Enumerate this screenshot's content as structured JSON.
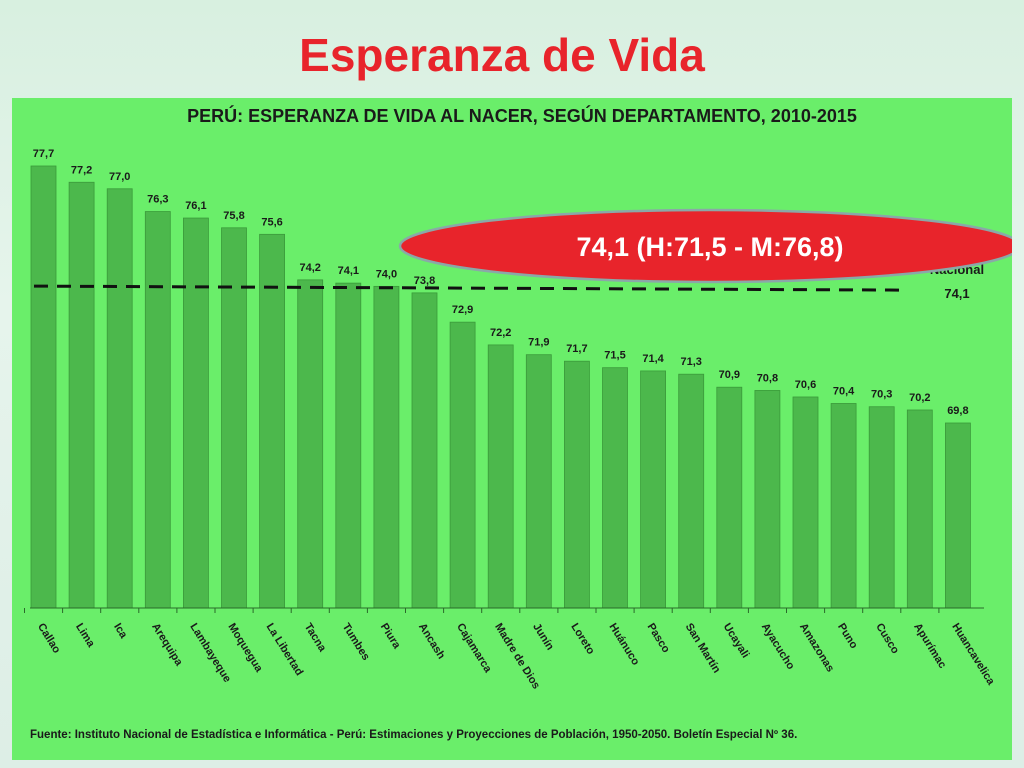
{
  "slide": {
    "title": "Esperanza de Vida"
  },
  "callout": {
    "text": "74,1 (H:71,5 - M:76,8)"
  },
  "national": {
    "label": "Nacional",
    "value": "74,1"
  },
  "source": "Fuente: Instituto Nacional de Estadística e Informática - Perú: Estimaciones y Proyecciones de Población, 1950-2050. Boletín Especial Nº 36.",
  "colors": {
    "bar": "#4cb84c",
    "bar_edge": "#3a9a3a",
    "panel": "#6aee6a",
    "title": "#e8242b",
    "callout": "#e8242b"
  },
  "chart_data": {
    "type": "bar",
    "title": "PERÚ: ESPERANZA DE VIDA AL NACER, SEGÚN DEPARTAMENTO, 2010-2015",
    "categories": [
      "Callao",
      "Lima",
      "Ica",
      "Arequipa",
      "Lambayeque",
      "Moquegua",
      "La Libertad",
      "Tacna",
      "Tumbes",
      "Piura",
      "Ancash",
      "Cajamarca",
      "Madre de Dios",
      "Junín",
      "Loreto",
      "Huánuco",
      "Pasco",
      "San Martín",
      "Ucayali",
      "Ayacucho",
      "Amazonas",
      "Puno",
      "Cusco",
      "Apurímac",
      "Huancavelica"
    ],
    "values": [
      77.7,
      77.2,
      77.0,
      76.3,
      76.1,
      75.8,
      75.6,
      74.2,
      74.1,
      74.0,
      73.8,
      72.9,
      72.2,
      71.9,
      71.7,
      71.5,
      71.4,
      71.3,
      70.9,
      70.8,
      70.6,
      70.4,
      70.3,
      70.2,
      69.8
    ],
    "value_labels": [
      "77,7",
      "77,2",
      "77,0",
      "76,3",
      "76,1",
      "75,8",
      "75,6",
      "74,2",
      "74,1",
      "74,0",
      "73,8",
      "72,9",
      "72,2",
      "71,9",
      "71,7",
      "71,5",
      "71,4",
      "71,3",
      "70,9",
      "70,8",
      "70,6",
      "70,4",
      "70,3",
      "70,2",
      "69,8"
    ],
    "reference_line": 74.1,
    "grid": false,
    "xlabel": "",
    "ylabel": ""
  }
}
